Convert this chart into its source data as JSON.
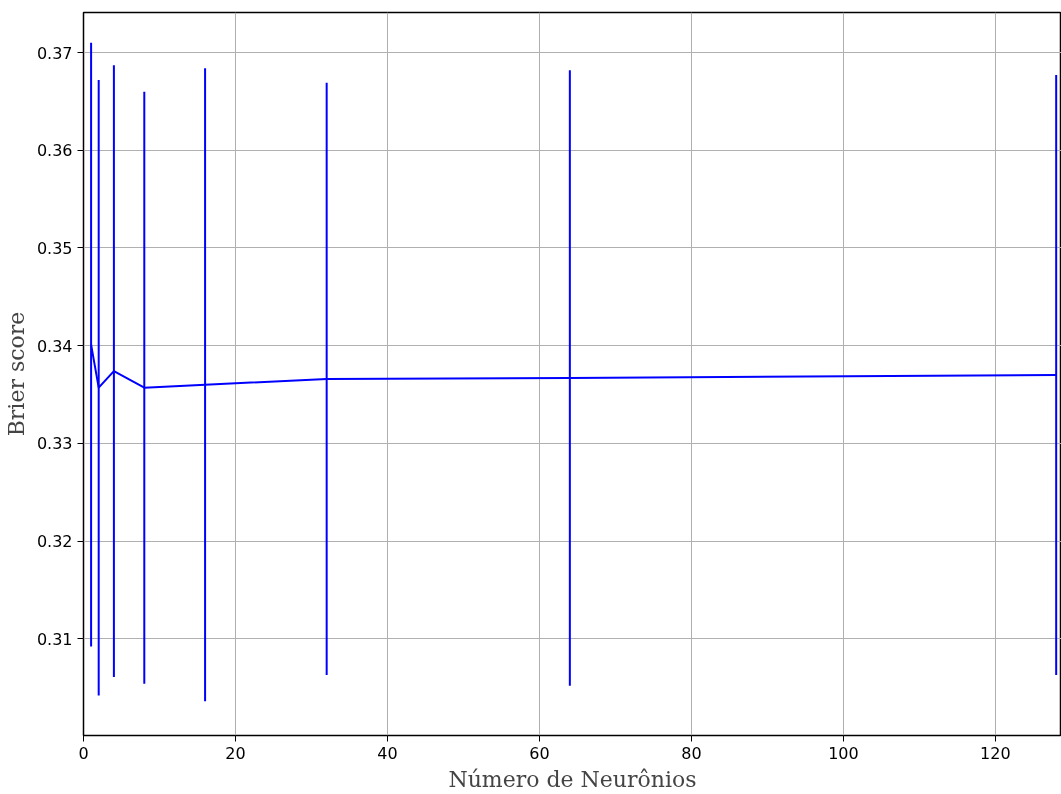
{
  "chart_data": {
    "type": "line",
    "xlabel": "Número de Neurônios",
    "ylabel": "Brier score",
    "x": [
      1,
      2,
      4,
      8,
      16,
      32,
      64,
      128
    ],
    "series": [
      {
        "color": "#0000ff",
        "values": [
          0.3401,
          0.3357,
          0.3374,
          0.3357,
          0.336,
          0.3366,
          0.3367,
          0.337
        ],
        "errors": [
          0.0309,
          0.0315,
          0.0313,
          0.0303,
          0.0324,
          0.0303,
          0.0315,
          0.0307
        ]
      }
    ],
    "xlim": [
      0,
      128.7
    ],
    "xticks": [
      0,
      20,
      40,
      60,
      80,
      100,
      120
    ],
    "ylim": [
      0.3001,
      0.3741
    ],
    "yticks": [
      {
        "value": 0.31,
        "label": "0.31"
      },
      {
        "value": 0.32,
        "label": "0.32"
      },
      {
        "value": 0.33,
        "label": "0.33"
      },
      {
        "value": 0.34,
        "label": "0.34"
      },
      {
        "value": 0.35,
        "label": "0.35"
      },
      {
        "value": 0.36,
        "label": "0.36"
      },
      {
        "value": 0.37,
        "label": "0.37"
      }
    ],
    "grid": true,
    "marker": "none",
    "line_style": "solid"
  }
}
